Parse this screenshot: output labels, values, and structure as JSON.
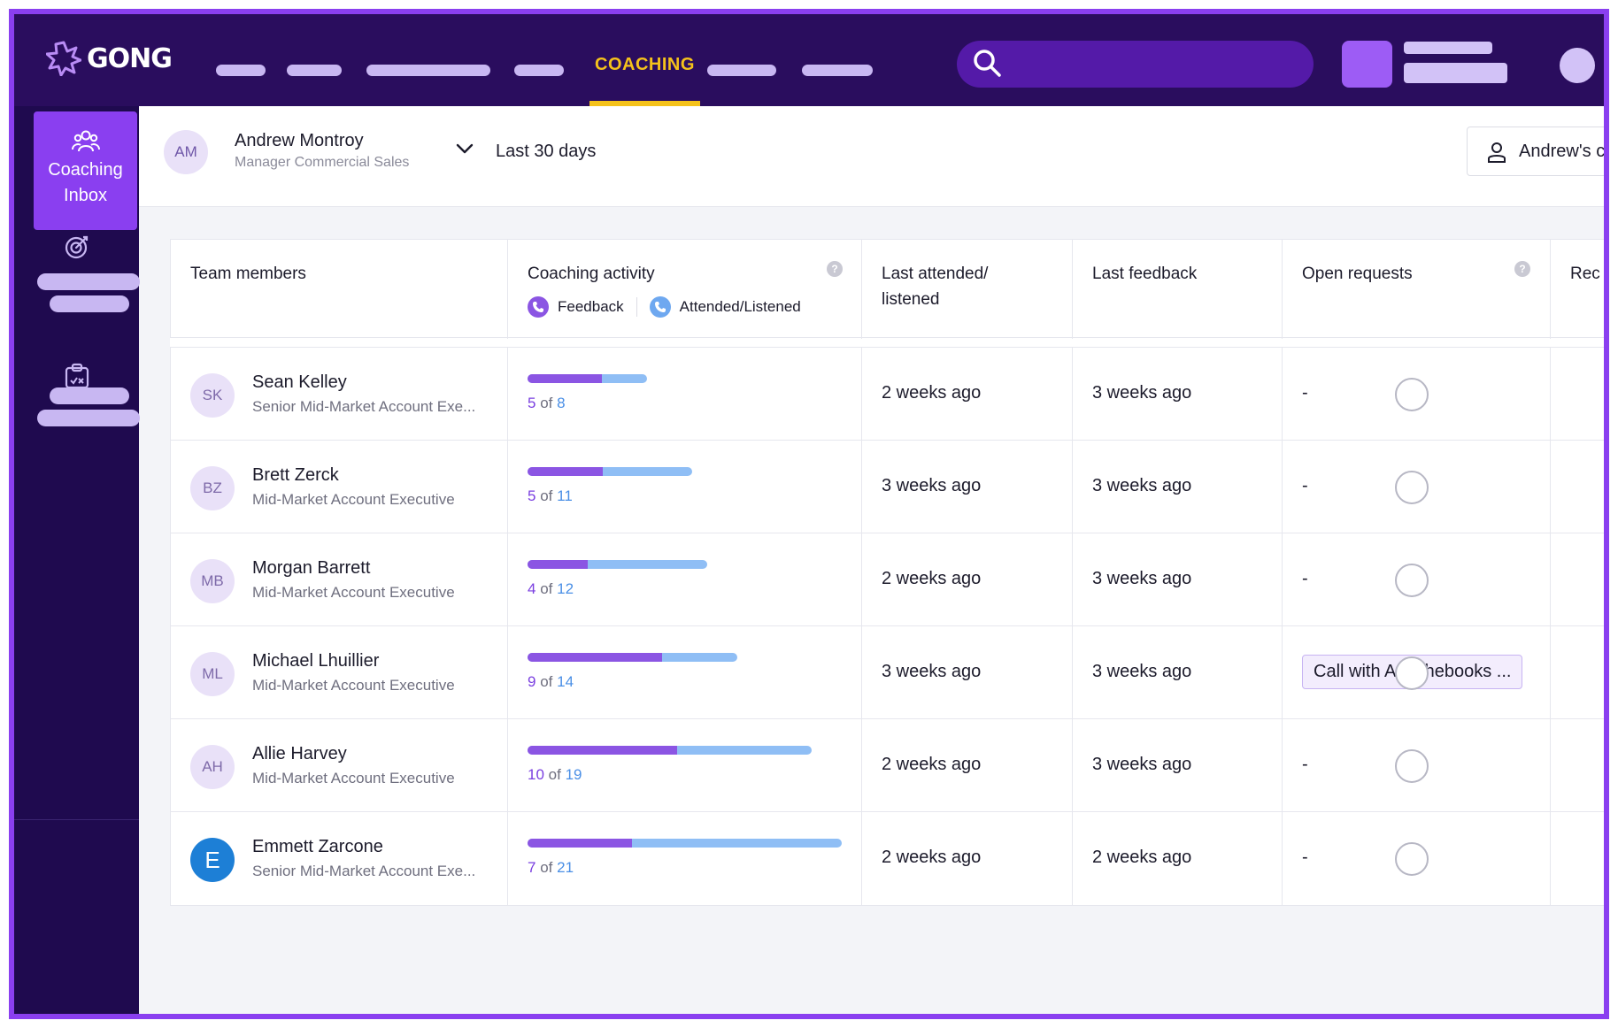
{
  "app": {
    "logo_text": "GONG",
    "active_nav": "COACHING",
    "search_icon": "search-icon"
  },
  "sidebar": {
    "active_item": {
      "label_line1": "Coaching",
      "label_line2": "Inbox",
      "icon": "team-icon"
    },
    "items": [
      {
        "icon": "target-icon"
      },
      {
        "icon": "clipboard-check-icon"
      }
    ]
  },
  "header": {
    "manager_initials": "AM",
    "manager_name": "Andrew Montroy",
    "manager_role": "Manager Commercial Sales",
    "date_range": "Last 30 days",
    "view_button_label": "Andrew's c"
  },
  "table": {
    "columns": {
      "members": "Team members",
      "coaching": "Coaching activity",
      "legend_feedback": "Feedback",
      "legend_attended": "Attended/Listened",
      "last_attended_line1": "Last attended/",
      "last_attended_line2": "listened",
      "last_feedback": "Last feedback",
      "open_requests": "Open requests",
      "rec": "Rec"
    },
    "rows": [
      {
        "initials": "SK",
        "name": "Sean Kelley",
        "title": "Senior Mid-Market Account Exe...",
        "feedback": 5,
        "attended": 8,
        "of": "of",
        "last_attended": "2 weeks ago",
        "last_feedback": "3 weeks ago",
        "open_request": "-"
      },
      {
        "initials": "BZ",
        "name": "Brett Zerck",
        "title": "Mid-Market Account Executive",
        "feedback": 5,
        "attended": 11,
        "of": "of",
        "last_attended": "3 weeks ago",
        "last_feedback": "3 weeks ago",
        "open_request": "-"
      },
      {
        "initials": "MB",
        "name": "Morgan Barrett",
        "title": "Mid-Market Account Executive",
        "feedback": 4,
        "attended": 12,
        "of": "of",
        "last_attended": "2 weeks ago",
        "last_feedback": "3 weeks ago",
        "open_request": "-"
      },
      {
        "initials": "ML",
        "name": "Michael Lhuillier",
        "title": "Mid-Market Account Executive",
        "feedback": 9,
        "attended": 14,
        "of": "of",
        "last_attended": "3 weeks ago",
        "last_feedback": "3 weeks ago",
        "open_request": "Call with Apachebooks ..."
      },
      {
        "initials": "AH",
        "name": "Allie Harvey",
        "title": "Mid-Market Account Executive",
        "feedback": 10,
        "attended": 19,
        "of": "of",
        "last_attended": "2 weeks ago",
        "last_feedback": "3 weeks ago",
        "open_request": "-"
      },
      {
        "initials": "E",
        "name": "Emmett Zarcone",
        "title": "Senior Mid-Market Account Exe...",
        "feedback": 7,
        "attended": 21,
        "of": "of",
        "last_attended": "2 weeks ago",
        "last_feedback": "2 weeks ago",
        "open_request": "-"
      }
    ]
  },
  "colors": {
    "accent": "#8a3ff0",
    "topbar": "#2a0d5e",
    "sidebar": "#1f0a4f",
    "active_nav": "#f5c21b",
    "feedback_bar": "#8b55e3",
    "attended_bar": "#8fbef5"
  }
}
